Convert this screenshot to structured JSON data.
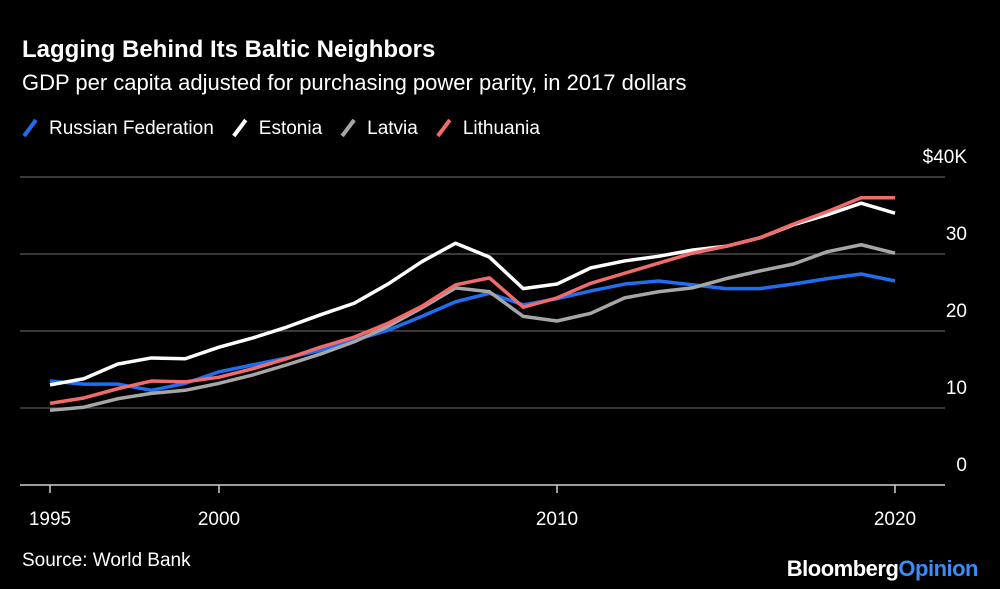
{
  "chart_data": {
    "type": "line",
    "title": "Lagging Behind Its Baltic Neighbors",
    "subtitle": "GDP per capita adjusted for purchasing power parity, in 2017 dollars",
    "source": "Source: World Bank",
    "brand_name": "Bloomberg",
    "brand_suffix": "Opinion",
    "x": [
      1995,
      1996,
      1997,
      1998,
      1999,
      2000,
      2001,
      2002,
      2003,
      2004,
      2005,
      2006,
      2007,
      2008,
      2009,
      2010,
      2011,
      2012,
      2013,
      2014,
      2015,
      2016,
      2017,
      2018,
      2019,
      2020
    ],
    "xlim": [
      1995,
      2020
    ],
    "xticks": [
      1995,
      2000,
      2010,
      2020
    ],
    "ylim": [
      0,
      40
    ],
    "yticks": [
      0,
      10,
      20,
      30,
      {
        "value": 40,
        "label": "$40K"
      }
    ],
    "grid": true,
    "legend": "top-left",
    "series": [
      {
        "name": "Russian Federation",
        "color": "#1f6ef0",
        "values": [
          13.5,
          13.1,
          13.1,
          12.3,
          13.2,
          14.7,
          15.6,
          16.5,
          17.5,
          18.8,
          20.1,
          21.9,
          23.8,
          24.9,
          23.4,
          24.2,
          25.2,
          26.1,
          26.5,
          26.0,
          25.5,
          25.5,
          26.1,
          26.8,
          27.4,
          26.5
        ]
      },
      {
        "name": "Estonia",
        "color": "#ffffff",
        "values": [
          13.0,
          13.8,
          15.7,
          16.5,
          16.4,
          17.9,
          19.1,
          20.5,
          22.1,
          23.6,
          26.1,
          29.0,
          31.4,
          29.6,
          25.5,
          26.1,
          28.2,
          29.1,
          29.7,
          30.5,
          31.0,
          32.1,
          33.8,
          35.1,
          36.6,
          35.3
        ]
      },
      {
        "name": "Latvia",
        "color": "#a6a6a6",
        "values": [
          9.7,
          10.1,
          11.2,
          11.9,
          12.3,
          13.2,
          14.3,
          15.6,
          17.0,
          18.6,
          20.6,
          23.0,
          25.6,
          25.1,
          21.9,
          21.3,
          22.3,
          24.3,
          25.1,
          25.6,
          26.8,
          27.8,
          28.7,
          30.3,
          31.2,
          30.1
        ]
      },
      {
        "name": "Lithuania",
        "color": "#f26a6a",
        "values": [
          10.6,
          11.3,
          12.5,
          13.5,
          13.4,
          14.0,
          15.1,
          16.4,
          17.9,
          19.2,
          21.0,
          23.2,
          26.0,
          26.9,
          23.1,
          24.3,
          26.2,
          27.5,
          28.8,
          30.1,
          31.0,
          32.1,
          33.9,
          35.5,
          37.3,
          37.3
        ]
      }
    ]
  }
}
